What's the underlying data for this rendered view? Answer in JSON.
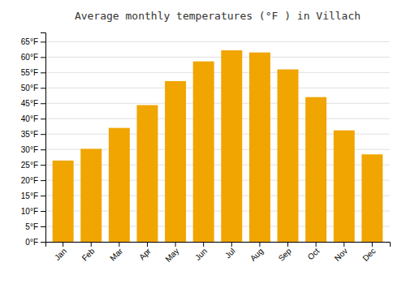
{
  "chart_data": {
    "type": "bar",
    "title": "Average monthly temperatures (°F ) in Villach",
    "categories": [
      "Jan",
      "Feb",
      "Mar",
      "Apr",
      "May",
      "Jun",
      "Jul",
      "Aug",
      "Sep",
      "Oct",
      "Nov",
      "Dec"
    ],
    "values": [
      26.4,
      30.2,
      37.0,
      44.4,
      52.2,
      58.6,
      62.2,
      61.5,
      56.0,
      47.0,
      36.2,
      28.4
    ],
    "color": "#F0A500",
    "ylim": [
      0,
      68
    ],
    "yticks": [
      {
        "value": 0,
        "label": "0°F"
      },
      {
        "value": 5,
        "label": "5°F"
      },
      {
        "value": 10,
        "label": "10°F"
      },
      {
        "value": 15,
        "label": "15°F"
      },
      {
        "value": 20,
        "label": "20°F"
      },
      {
        "value": 25,
        "label": "25°F"
      },
      {
        "value": 30,
        "label": "30°F"
      },
      {
        "value": 35,
        "label": "35°F"
      },
      {
        "value": 40,
        "label": "40°F"
      },
      {
        "value": 45,
        "label": "45°F"
      },
      {
        "value": 50,
        "label": "50°F"
      },
      {
        "value": 55,
        "label": "55°F"
      },
      {
        "value": 60,
        "label": "60°F"
      },
      {
        "value": 65,
        "label": "65°F"
      }
    ],
    "grid": true
  }
}
